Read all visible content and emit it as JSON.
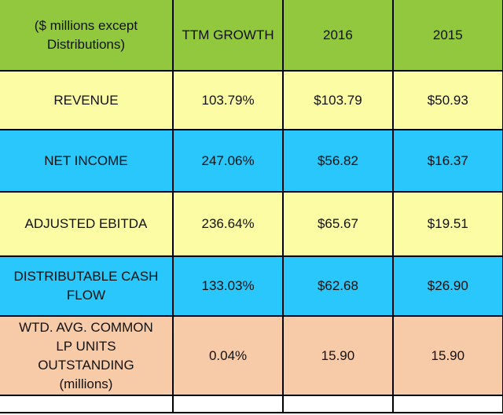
{
  "header": {
    "label_line1": "($ millions except",
    "label_line2": "Distributions)",
    "col_growth": "TTM GROWTH",
    "col_2016": "2016",
    "col_2015": "2015"
  },
  "rows": [
    {
      "label": "REVENUE",
      "growth": "103.79%",
      "y2016": "$103.79",
      "y2015": "$50.93"
    },
    {
      "label": "NET INCOME",
      "growth": "247.06%",
      "y2016": "$56.82",
      "y2015": "$16.37"
    },
    {
      "label": "ADJUSTED EBITDA",
      "growth": "236.64%",
      "y2016": "$65.67",
      "y2015": "$19.51"
    },
    {
      "label_line1": "DISTRIBUTABLE CASH",
      "label_line2": "FLOW",
      "growth": "133.03%",
      "y2016": "$62.68",
      "y2015": "$26.90"
    },
    {
      "label_line1": "WTD. AVG. COMMON",
      "label_line2": "LP UNITS",
      "label_line3": "OUTSTANDING",
      "label_line4": "(millions)",
      "growth": "0.04%",
      "y2016": "15.90",
      "y2015": "15.90"
    }
  ],
  "colors": {
    "header": "#92c83e",
    "yellow": "#fbfca4",
    "blue": "#29c7fb",
    "peach": "#f8cba8",
    "border": "#000000"
  }
}
